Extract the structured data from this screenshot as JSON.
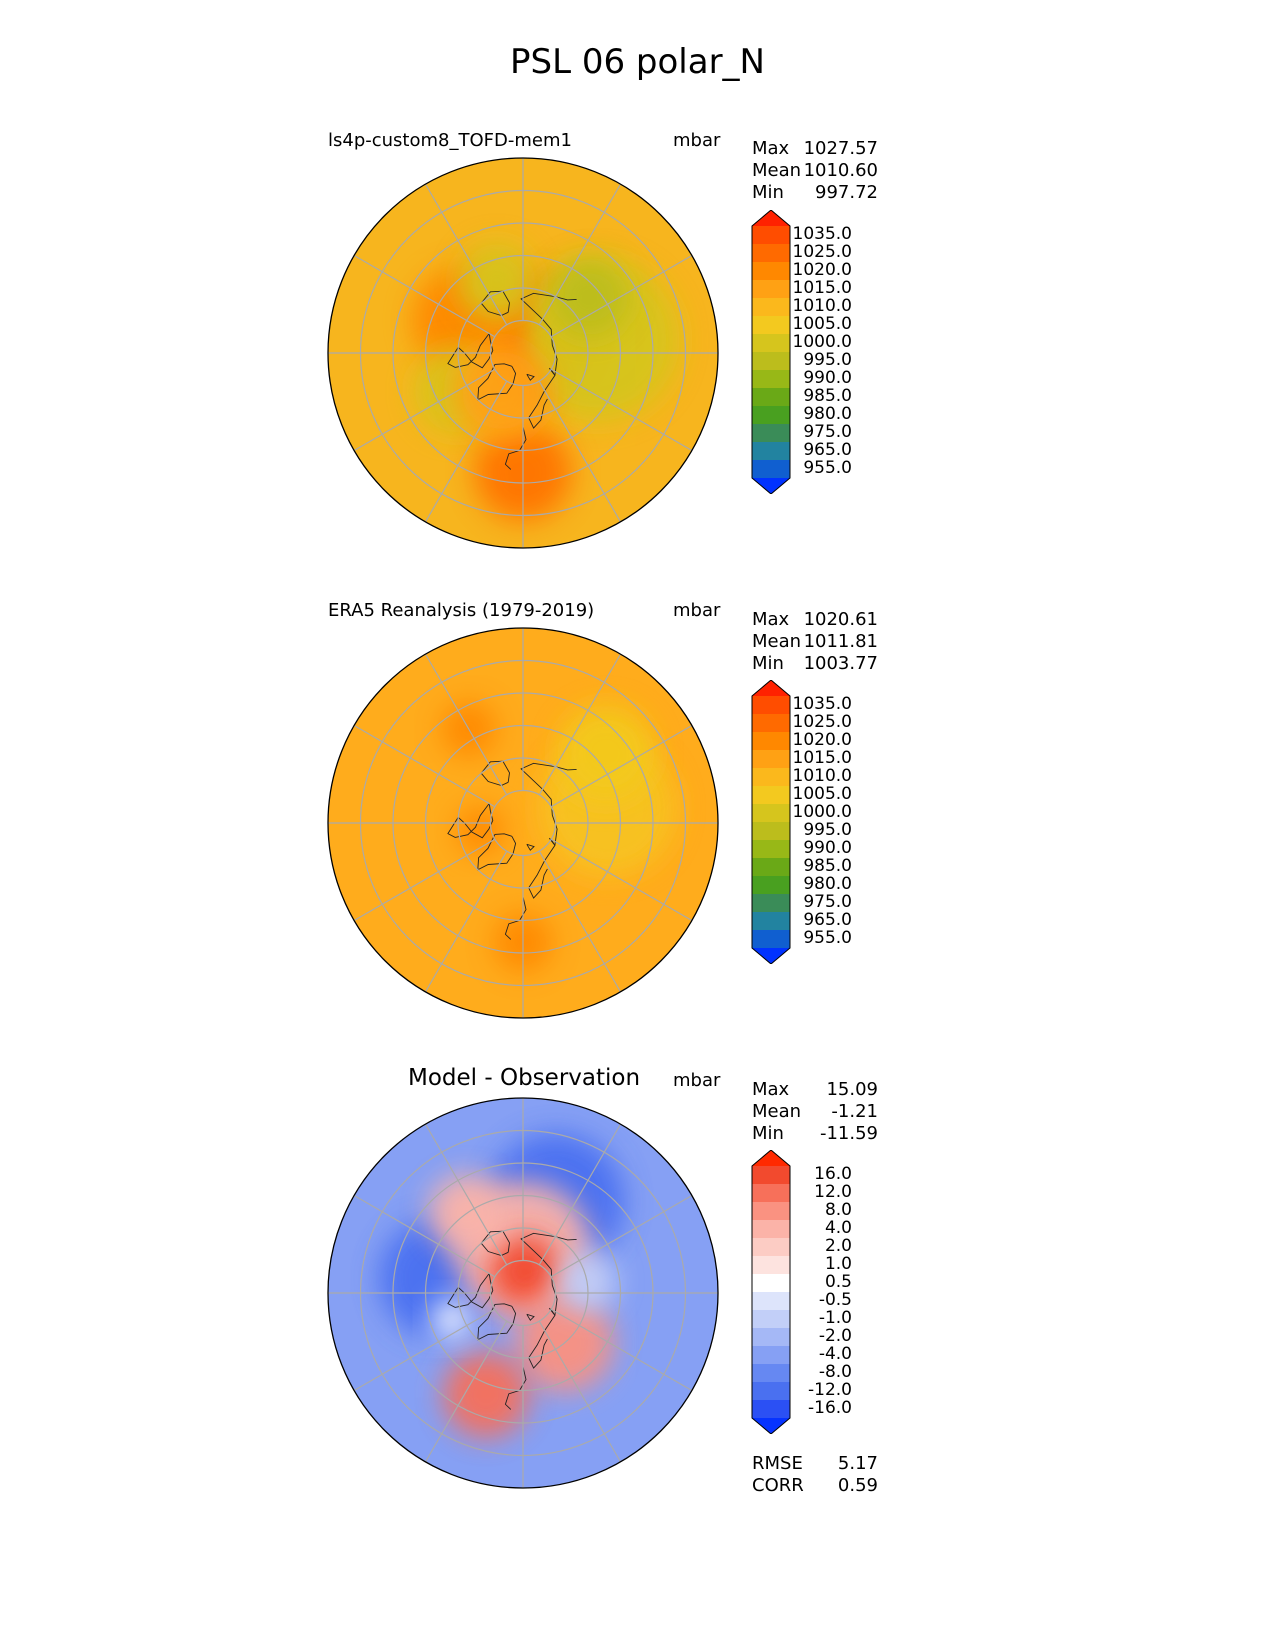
{
  "title": "PSL 06 polar_N",
  "panels": [
    {
      "title": "ls4p-custom8_TOFD-mem1",
      "units": "mbar",
      "stats": [
        {
          "label": "Max",
          "value": "1027.57"
        },
        {
          "label": "Mean",
          "value": "1010.60"
        },
        {
          "label": "Min",
          "value": "997.72"
        }
      ]
    },
    {
      "title": "ERA5 Reanalysis (1979-2019)",
      "units": "mbar",
      "stats": [
        {
          "label": "Max",
          "value": "1020.61"
        },
        {
          "label": "Mean",
          "value": "1011.81"
        },
        {
          "label": "Min",
          "value": "1003.77"
        }
      ]
    },
    {
      "title": "Model - Observation",
      "units": "mbar",
      "stats": [
        {
          "label": "Max",
          "value": "15.09"
        },
        {
          "label": "Mean",
          "value": "-1.21"
        },
        {
          "label": "Min",
          "value": "-11.59"
        }
      ],
      "metrics": [
        {
          "label": "RMSE",
          "value": "5.17"
        },
        {
          "label": "CORR",
          "value": "0.59"
        }
      ]
    }
  ],
  "colorbars": {
    "absolute": {
      "labels": [
        "1035.0",
        "1025.0",
        "1020.0",
        "1015.0",
        "1010.0",
        "1005.0",
        "1000.0",
        "995.0",
        "990.0",
        "985.0",
        "980.0",
        "975.0",
        "965.0",
        "955.0"
      ],
      "colors": [
        "#ff2200",
        "#ff4d00",
        "#ff6a00",
        "#ff8800",
        "#ffa114",
        "#fbb81c",
        "#f3c91f",
        "#d6c51d",
        "#bcbd1c",
        "#98b817",
        "#6aa917",
        "#49a020",
        "#3a8c58",
        "#2283a0",
        "#105fd0",
        "#0032ff"
      ]
    },
    "difference": {
      "labels": [
        "16.0",
        "12.0",
        "8.0",
        "4.0",
        "2.0",
        "1.0",
        "0.5",
        "-0.5",
        "-1.0",
        "-2.0",
        "-4.0",
        "-8.0",
        "-12.0",
        "-16.0"
      ],
      "colors": [
        "#ff2a00",
        "#f24a2e",
        "#f7705a",
        "#fa9281",
        "#fbb3a8",
        "#fcccc4",
        "#fde3df",
        "#ffffff",
        "#dde4fb",
        "#c2cff8",
        "#a5b8f6",
        "#86a0f4",
        "#6688f2",
        "#4a70f0",
        "#2b50f4",
        "#0633ff"
      ]
    }
  },
  "fields": {
    "panel_1": {
      "base": "#f7b51e",
      "patches": [
        {
          "c": "#ff6a00",
          "lat": 82,
          "lon": 150,
          "r": 0.32
        },
        {
          "c": "#ff5500",
          "lat": 86,
          "lon": 180,
          "r": 0.18
        },
        {
          "c": "#d6c51d",
          "lat": 55,
          "lon": 100,
          "r": 0.42
        },
        {
          "c": "#bcbd1c",
          "lat": 50,
          "lon": 130,
          "r": 0.2
        },
        {
          "c": "#ff8800",
          "lat": 60,
          "lon": -120,
          "r": 0.28
        },
        {
          "c": "#d6c51d",
          "lat": 55,
          "lon": -60,
          "r": 0.22
        },
        {
          "c": "#ff7300",
          "lat": 35,
          "lon": 0,
          "r": 0.25
        },
        {
          "c": "#ffa114",
          "lat": 70,
          "lon": -30,
          "r": 0.25
        },
        {
          "c": "#d6c51d",
          "lat": 55,
          "lon": -160,
          "r": 0.2
        }
      ]
    },
    "panel_2": {
      "base": "#ffac1c",
      "patches": [
        {
          "c": "#f7c323",
          "lat": 50,
          "lon": 100,
          "r": 0.35
        },
        {
          "c": "#f3c91f",
          "lat": 40,
          "lon": 130,
          "r": 0.25
        },
        {
          "c": "#ff8800",
          "lat": 70,
          "lon": -80,
          "r": 0.12
        },
        {
          "c": "#ff8800",
          "lat": 40,
          "lon": -150,
          "r": 0.14
        },
        {
          "c": "#ff8800",
          "lat": 35,
          "lon": 0,
          "r": 0.15
        }
      ]
    },
    "panel_3": {
      "base": "#86a0f4",
      "patches": [
        {
          "c": "#4a70f0",
          "lat": 45,
          "lon": 160,
          "r": 0.35
        },
        {
          "c": "#4a70f0",
          "lat": 50,
          "lon": -100,
          "r": 0.3
        },
        {
          "c": "#fbb3a8",
          "lat": 70,
          "lon": 180,
          "r": 0.35
        },
        {
          "c": "#f24a2e",
          "lat": 80,
          "lon": 175,
          "r": 0.18
        },
        {
          "c": "#fa9281",
          "lat": 60,
          "lon": 40,
          "r": 0.25
        },
        {
          "c": "#f7705a",
          "lat": 40,
          "lon": -20,
          "r": 0.22
        },
        {
          "c": "#fbb3a8",
          "lat": 45,
          "lon": -145,
          "r": 0.2
        },
        {
          "c": "#ffffff",
          "lat": 55,
          "lon": -70,
          "r": 0.1
        },
        {
          "c": "#c2cff8",
          "lat": 60,
          "lon": 100,
          "r": 0.15
        }
      ]
    }
  }
}
